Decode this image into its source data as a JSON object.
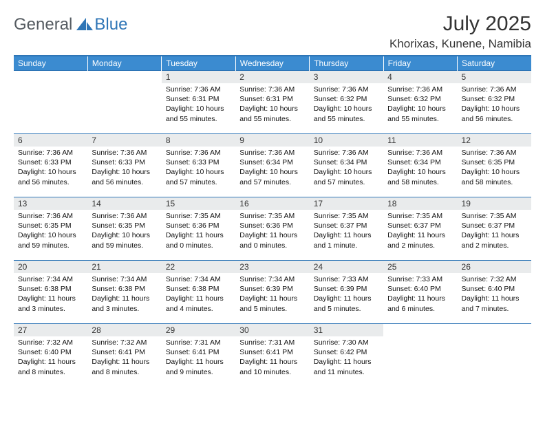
{
  "logo": {
    "general": "General",
    "blue": "Blue"
  },
  "title": "July 2025",
  "location": "Khorixas, Kunene, Namibia",
  "colors": {
    "header_bg": "#3b8bd0",
    "border": "#2e75b6",
    "daynum_bg": "#e9ebec",
    "logo_gray": "#555b61",
    "logo_blue": "#2e75b6"
  },
  "weekdays": [
    "Sunday",
    "Monday",
    "Tuesday",
    "Wednesday",
    "Thursday",
    "Friday",
    "Saturday"
  ],
  "weeks": [
    [
      {
        "empty": true
      },
      {
        "empty": true
      },
      {
        "num": "1",
        "sunrise": "Sunrise: 7:36 AM",
        "sunset": "Sunset: 6:31 PM",
        "daylight": "Daylight: 10 hours and 55 minutes."
      },
      {
        "num": "2",
        "sunrise": "Sunrise: 7:36 AM",
        "sunset": "Sunset: 6:31 PM",
        "daylight": "Daylight: 10 hours and 55 minutes."
      },
      {
        "num": "3",
        "sunrise": "Sunrise: 7:36 AM",
        "sunset": "Sunset: 6:32 PM",
        "daylight": "Daylight: 10 hours and 55 minutes."
      },
      {
        "num": "4",
        "sunrise": "Sunrise: 7:36 AM",
        "sunset": "Sunset: 6:32 PM",
        "daylight": "Daylight: 10 hours and 55 minutes."
      },
      {
        "num": "5",
        "sunrise": "Sunrise: 7:36 AM",
        "sunset": "Sunset: 6:32 PM",
        "daylight": "Daylight: 10 hours and 56 minutes."
      }
    ],
    [
      {
        "num": "6",
        "sunrise": "Sunrise: 7:36 AM",
        "sunset": "Sunset: 6:33 PM",
        "daylight": "Daylight: 10 hours and 56 minutes."
      },
      {
        "num": "7",
        "sunrise": "Sunrise: 7:36 AM",
        "sunset": "Sunset: 6:33 PM",
        "daylight": "Daylight: 10 hours and 56 minutes."
      },
      {
        "num": "8",
        "sunrise": "Sunrise: 7:36 AM",
        "sunset": "Sunset: 6:33 PM",
        "daylight": "Daylight: 10 hours and 57 minutes."
      },
      {
        "num": "9",
        "sunrise": "Sunrise: 7:36 AM",
        "sunset": "Sunset: 6:34 PM",
        "daylight": "Daylight: 10 hours and 57 minutes."
      },
      {
        "num": "10",
        "sunrise": "Sunrise: 7:36 AM",
        "sunset": "Sunset: 6:34 PM",
        "daylight": "Daylight: 10 hours and 57 minutes."
      },
      {
        "num": "11",
        "sunrise": "Sunrise: 7:36 AM",
        "sunset": "Sunset: 6:34 PM",
        "daylight": "Daylight: 10 hours and 58 minutes."
      },
      {
        "num": "12",
        "sunrise": "Sunrise: 7:36 AM",
        "sunset": "Sunset: 6:35 PM",
        "daylight": "Daylight: 10 hours and 58 minutes."
      }
    ],
    [
      {
        "num": "13",
        "sunrise": "Sunrise: 7:36 AM",
        "sunset": "Sunset: 6:35 PM",
        "daylight": "Daylight: 10 hours and 59 minutes."
      },
      {
        "num": "14",
        "sunrise": "Sunrise: 7:36 AM",
        "sunset": "Sunset: 6:35 PM",
        "daylight": "Daylight: 10 hours and 59 minutes."
      },
      {
        "num": "15",
        "sunrise": "Sunrise: 7:35 AM",
        "sunset": "Sunset: 6:36 PM",
        "daylight": "Daylight: 11 hours and 0 minutes."
      },
      {
        "num": "16",
        "sunrise": "Sunrise: 7:35 AM",
        "sunset": "Sunset: 6:36 PM",
        "daylight": "Daylight: 11 hours and 0 minutes."
      },
      {
        "num": "17",
        "sunrise": "Sunrise: 7:35 AM",
        "sunset": "Sunset: 6:37 PM",
        "daylight": "Daylight: 11 hours and 1 minute."
      },
      {
        "num": "18",
        "sunrise": "Sunrise: 7:35 AM",
        "sunset": "Sunset: 6:37 PM",
        "daylight": "Daylight: 11 hours and 2 minutes."
      },
      {
        "num": "19",
        "sunrise": "Sunrise: 7:35 AM",
        "sunset": "Sunset: 6:37 PM",
        "daylight": "Daylight: 11 hours and 2 minutes."
      }
    ],
    [
      {
        "num": "20",
        "sunrise": "Sunrise: 7:34 AM",
        "sunset": "Sunset: 6:38 PM",
        "daylight": "Daylight: 11 hours and 3 minutes."
      },
      {
        "num": "21",
        "sunrise": "Sunrise: 7:34 AM",
        "sunset": "Sunset: 6:38 PM",
        "daylight": "Daylight: 11 hours and 3 minutes."
      },
      {
        "num": "22",
        "sunrise": "Sunrise: 7:34 AM",
        "sunset": "Sunset: 6:38 PM",
        "daylight": "Daylight: 11 hours and 4 minutes."
      },
      {
        "num": "23",
        "sunrise": "Sunrise: 7:34 AM",
        "sunset": "Sunset: 6:39 PM",
        "daylight": "Daylight: 11 hours and 5 minutes."
      },
      {
        "num": "24",
        "sunrise": "Sunrise: 7:33 AM",
        "sunset": "Sunset: 6:39 PM",
        "daylight": "Daylight: 11 hours and 5 minutes."
      },
      {
        "num": "25",
        "sunrise": "Sunrise: 7:33 AM",
        "sunset": "Sunset: 6:40 PM",
        "daylight": "Daylight: 11 hours and 6 minutes."
      },
      {
        "num": "26",
        "sunrise": "Sunrise: 7:32 AM",
        "sunset": "Sunset: 6:40 PM",
        "daylight": "Daylight: 11 hours and 7 minutes."
      }
    ],
    [
      {
        "num": "27",
        "sunrise": "Sunrise: 7:32 AM",
        "sunset": "Sunset: 6:40 PM",
        "daylight": "Daylight: 11 hours and 8 minutes."
      },
      {
        "num": "28",
        "sunrise": "Sunrise: 7:32 AM",
        "sunset": "Sunset: 6:41 PM",
        "daylight": "Daylight: 11 hours and 8 minutes."
      },
      {
        "num": "29",
        "sunrise": "Sunrise: 7:31 AM",
        "sunset": "Sunset: 6:41 PM",
        "daylight": "Daylight: 11 hours and 9 minutes."
      },
      {
        "num": "30",
        "sunrise": "Sunrise: 7:31 AM",
        "sunset": "Sunset: 6:41 PM",
        "daylight": "Daylight: 11 hours and 10 minutes."
      },
      {
        "num": "31",
        "sunrise": "Sunrise: 7:30 AM",
        "sunset": "Sunset: 6:42 PM",
        "daylight": "Daylight: 11 hours and 11 minutes."
      },
      {
        "empty": true
      },
      {
        "empty": true
      }
    ]
  ]
}
